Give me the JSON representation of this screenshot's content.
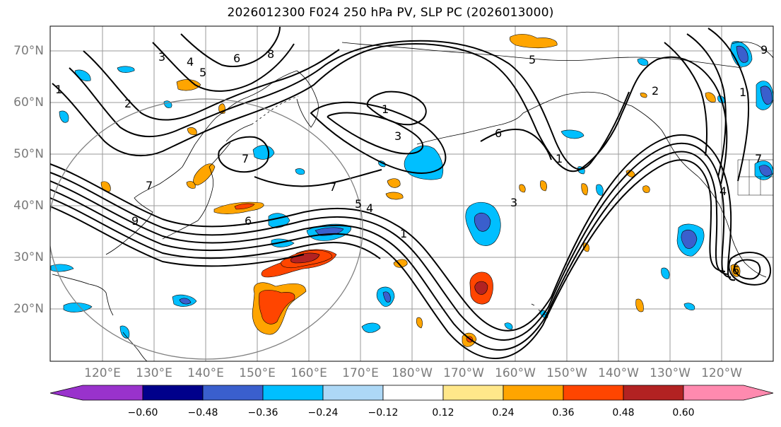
{
  "title": "2026012300 F024 250 hPa PV, SLP PC (2026013000)",
  "lat_labels": [
    "70°N",
    "60°N",
    "50°N",
    "40°N",
    "30°N",
    "20°N"
  ],
  "lon_labels": [
    "120°E",
    "130°E",
    "140°E",
    "150°E",
    "160°E",
    "170°E",
    "180°W",
    "170°W",
    "160°W",
    "150°W",
    "140°W",
    "130°W",
    "120°W"
  ],
  "colorbar": {
    "tick_labels": [
      "−0.60",
      "−0.48",
      "−0.36",
      "−0.24",
      "−0.12",
      "0.12",
      "0.24",
      "0.36",
      "0.48",
      "0.60"
    ],
    "colors": [
      "#9932cc",
      "#00008b",
      "#3a5fcd",
      "#00bfff",
      "#add8f6",
      "#ffffff",
      "#ffe78a",
      "#ffa500",
      "#ff4500",
      "#b22222",
      "#ff8aaf"
    ]
  },
  "contour_labels": [
    "3",
    "4",
    "5",
    "6",
    "8",
    "1",
    "2",
    "7",
    "9",
    "7",
    "1",
    "3",
    "5",
    "6",
    "7",
    "5",
    "4",
    "6",
    "1",
    "3",
    "1",
    "2",
    "7",
    "1",
    "4",
    "6",
    "9"
  ]
}
